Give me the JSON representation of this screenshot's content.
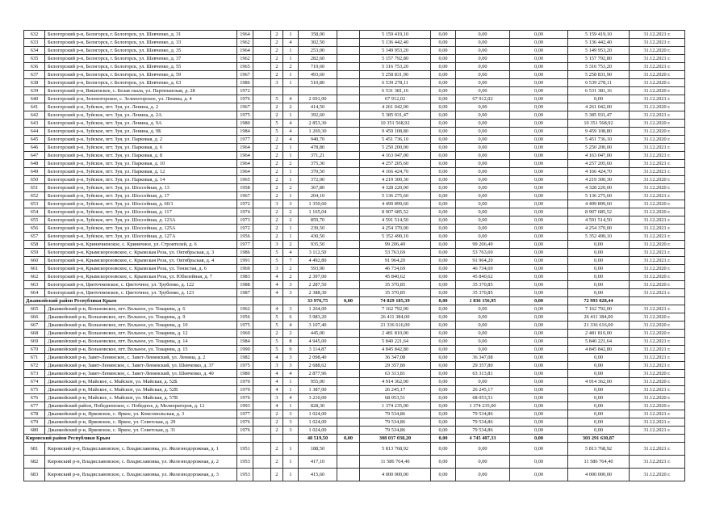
{
  "rows": [
    {
      "n": "632",
      "a": "Белогорский р-н, Белогорск, г. Белогорск, ул. Шевченко, д. 31",
      "y": "1964",
      "f": "2",
      "e": "1",
      "s": "358,00",
      "c": "5 159 419,10",
      "z1": "0,00",
      "p": "0,00",
      "z2": "0,00",
      "r": "5 159 419,10",
      "d": "31.12.2021 г."
    },
    {
      "n": "633",
      "a": "Белогорский р-н, Белогорск, г. Белогорск, ул. Шевченко, д. 33",
      "y": "1962",
      "f": "2",
      "e": "4",
      "s": "302,50",
      "c": "5 136 442,40",
      "z1": "0,00",
      "p": "0,00",
      "z2": "0,00",
      "r": "5 136 442,40",
      "d": "31.12.2021 г."
    },
    {
      "n": "634",
      "a": "Белогорский р-н, Белогорск, г. Белогорск, ул. Шевченко, д. 35",
      "y": "1964",
      "f": "2",
      "e": "1",
      "s": "253,00",
      "c": "5 149 953,20",
      "z1": "0,00",
      "p": "0,00",
      "z2": "0,00",
      "r": "5 149 953,20",
      "d": "31.12.2020 г."
    },
    {
      "n": "635",
      "a": "Белогорский р-н, Белогорск, г. Белогорск, ул. Шевченко, д. 37",
      "y": "1962",
      "f": "2",
      "e": "1",
      "s": "282,60",
      "c": "5 157 792,80",
      "z1": "0,00",
      "p": "0,00",
      "z2": "0,00",
      "r": "5 157 792,80",
      "d": "31.12.2021 г."
    },
    {
      "n": "636",
      "a": "Белогорский р-н, Белогорск, г. Белогорск, ул. Шевченко, д. 55",
      "y": "1965",
      "f": "2",
      "e": "2",
      "s": "719,60",
      "c": "5 316 753,20",
      "z1": "0,00",
      "p": "0,00",
      "z2": "0,00",
      "r": "5 316 753,20",
      "d": "31.12.2021 г."
    },
    {
      "n": "637",
      "a": "Белогорский р-н, Белогорск, г. Белогорск, ул. Шевченко, д. 59",
      "y": "1967",
      "f": "2",
      "e": "1",
      "s": "493,60",
      "c": "5 258 831,90",
      "z1": "0,00",
      "p": "0,00",
      "z2": "0,00",
      "r": "5 258 831,90",
      "d": "31.12.2020 г."
    },
    {
      "n": "638",
      "a": "Белогорский р-н, Белогорск, г. Белогорск, ул. Шевченко, д. 63",
      "y": "1986",
      "f": "3",
      "e": "1",
      "s": "510,80",
      "c": "6 539 278,11",
      "z1": "0,00",
      "p": "0,00",
      "z2": "0,00",
      "r": "6 539 278,11",
      "d": "31.12.2020 г."
    },
    {
      "n": "639",
      "a": "Белогорский р-н, Вишенское, с. Белая скала, ул. Партизанская, д. 28",
      "y": "1972",
      "f": "",
      "e": "",
      "s": "",
      "c": "6 531 381,16",
      "z1": "0,00",
      "p": "0,00",
      "z2": "0,00",
      "r": "6 531 381,16",
      "d": "31.12.2020 г."
    },
    {
      "n": "640",
      "a": "Белогорский р-н, Зеленогорское, с. Зеленогорское, ул. Ленина, д. 4",
      "y": "1976",
      "f": "5",
      "e": "4",
      "s": "2 691,00",
      "c": "67 912,02",
      "z1": "0,00",
      "p": "67 912,02",
      "z2": "0,00",
      "r": "0,00",
      "d": "31.12.2021 г."
    },
    {
      "n": "641",
      "a": "Белогорский р-н, Зуйское, пгт. Зуя, ул. Ленина, д. 2",
      "y": "1967",
      "f": "2",
      "e": "2",
      "s": "414,50",
      "c": "4 261 042,00",
      "z1": "0,00",
      "p": "0,00",
      "z2": "0,00",
      "r": "4 261 042,00",
      "d": "31.12.2020 г."
    },
    {
      "n": "642",
      "a": "Белогорский р-н, Зуйское, пгт. Зуя, ул. Ленина, д. 2А",
      "y": "1975",
      "f": "2",
      "e": "1",
      "s": "392,60",
      "c": "5 385 931,47",
      "z1": "0,00",
      "p": "0,00",
      "z2": "0,00",
      "r": "5 385 931,47",
      "d": "31.12.2021 г."
    },
    {
      "n": "643",
      "a": "Белогорский р-н, Зуйское, пгт. Зуя, ул. Ленина, д. 9А",
      "y": "1980",
      "f": "5",
      "e": "4",
      "s": "2 853,30",
      "c": "10 351 568,92",
      "z1": "0,00",
      "p": "0,00",
      "z2": "0,00",
      "r": "10 351 568,92",
      "d": "31.12.2020 г."
    },
    {
      "n": "644",
      "a": "Белогорский р-н, Зуйское, пгт. Зуя, ул. Ленина, д. 9Б",
      "y": "1984",
      "f": "5",
      "e": "4",
      "s": "1 269,30",
      "c": "9 459 108,80",
      "z1": "0,00",
      "p": "0,00",
      "z2": "0,00",
      "r": "9 459 108,80",
      "d": "31.12.2020 г."
    },
    {
      "n": "645",
      "a": "Белогорский р-н, Зуйское, пгт. Зуя, ул. Парковая, д. 2",
      "y": "1977",
      "f": "2",
      "e": "4",
      "s": "940,70",
      "c": "5 451 736,10",
      "z1": "0,00",
      "p": "0,00",
      "z2": "0,00",
      "r": "5 451 736,10",
      "d": "31.12.2020 г."
    },
    {
      "n": "646",
      "a": "Белогорский р-н, Зуйское, пгт. Зуя, ул. Парковая, д. 6",
      "y": "1964",
      "f": "2",
      "e": "1",
      "s": "478,80",
      "c": "5 250 200,00",
      "z1": "0,00",
      "p": "0,00",
      "z2": "0,00",
      "r": "5 250 200,00",
      "d": "31.12.2021 г."
    },
    {
      "n": "647",
      "a": "Белогорский р-н, Зуйское, пгт. Зуя, ул. Парковая, д. 8",
      "y": "1964",
      "f": "2",
      "e": "1",
      "s": "371,21",
      "c": "4 163 047,00",
      "z1": "0,00",
      "p": "0,00",
      "z2": "0,00",
      "r": "4 163 047,00",
      "d": "31.12.2021 г."
    },
    {
      "n": "648",
      "a": "Белогорский р-н, Зуйское, пгт. Зуя, ул. Парковая, д. 10",
      "y": "1964",
      "f": "2",
      "e": "2",
      "s": "375,30",
      "c": "4 257 205,60",
      "z1": "0,00",
      "p": "0,00",
      "z2": "0,00",
      "r": "4 257 205,60",
      "d": "31.12.2021 г."
    },
    {
      "n": "649",
      "a": "Белогорский р-н, Зуйское, пгт. Зуя, ул. Парковая, д. 12",
      "y": "1964",
      "f": "2",
      "e": "1",
      "s": "370,50",
      "c": "4 166 424,70",
      "z1": "0,00",
      "p": "0,00",
      "z2": "0,00",
      "r": "4 166 424,70",
      "d": "31.12.2021 г."
    },
    {
      "n": "650",
      "a": "Белогорский р-н, Зуйское, пгт. Зуя, ул. Парковая, д. 14",
      "y": "1965",
      "f": "2",
      "e": "1",
      "s": "372,00",
      "c": "4 219 300,30",
      "z1": "0,00",
      "p": "0,00",
      "z2": "0,00",
      "r": "4 219 300,30",
      "d": "31.12.2020 г."
    },
    {
      "n": "651",
      "a": "Белогорский р-н, Зуйское, пгт. Зуя, ул. Шоссейная, д. 13",
      "y": "1958",
      "f": "2",
      "e": "2",
      "s": "367,80",
      "c": "4 328 220,00",
      "z1": "0,00",
      "p": "0,00",
      "z2": "0,00",
      "r": "4 328 220,00",
      "d": "31.12.2020 г."
    },
    {
      "n": "652",
      "a": "Белогорский р-н, Зуйское, пгт. Зуя, ул. Шоссейная, д. 17",
      "y": "1967",
      "f": "2",
      "e": "1",
      "s": "204,10",
      "c": "5 136 275,60",
      "z1": "0,00",
      "p": "0,00",
      "z2": "0,00",
      "r": "5 136 275,60",
      "d": "31.12.2021 г."
    },
    {
      "n": "653",
      "a": "Белогорский р-н, Зуйское, пгт. Зуя, ул. Шоссейная, д. 60/1",
      "y": "1972",
      "f": "3",
      "e": "3",
      "s": "1 350,60",
      "c": "4 499 899,60",
      "z1": "0,00",
      "p": "0,00",
      "z2": "0,00",
      "r": "4 499 899,60",
      "d": "31.12.2020 г."
    },
    {
      "n": "654",
      "a": "Белогорский р-н, Зуйское, пгт. Зуя, ул. Шоссейная, д. 117",
      "y": "1974",
      "f": "2",
      "e": "2",
      "s": "1 165,04",
      "c": "8 907 685,52",
      "z1": "0,00",
      "p": "0,00",
      "z2": "0,00",
      "r": "8 907 685,52",
      "d": "31.12.2020 г."
    },
    {
      "n": "655",
      "a": "Белогорский р-н, Зуйское, пгт. Зуя, ул. Шоссейная, д. 123А",
      "y": "1973",
      "f": "2",
      "e": "2",
      "s": "859,70",
      "c": "4 591 514,50",
      "z1": "0,00",
      "p": "0,00",
      "z2": "0,00",
      "r": "4 591 514,50",
      "d": "31.12.2021 г."
    },
    {
      "n": "656",
      "a": "Белогорский р-н, Зуйское, пгт. Зуя, ул. Шоссейная, д. 125А",
      "y": "1972",
      "f": "2",
      "e": "1",
      "s": "239,50",
      "c": "4 254 370,00",
      "z1": "0,00",
      "p": "0,00",
      "z2": "0,00",
      "r": "4 254 370,00",
      "d": "31.12.2021 г."
    },
    {
      "n": "657",
      "a": "Белогорский р-н, Зуйское, пгт. Зуя, ул. Шоссейная, д. 127А",
      "y": "1956",
      "f": "2",
      "e": "1",
      "s": "430,50",
      "c": "5 352 490,10",
      "z1": "0,00",
      "p": "0,00",
      "z2": "0,00",
      "r": "5 352 490,10",
      "d": "31.12.2021 г."
    },
    {
      "n": "658",
      "a": "Белогорский р-н, Криничненское, с. Криничное, ул. Строителей, д. 6",
      "y": "1977",
      "f": "3",
      "e": "2",
      "s": "935,50",
      "c": "99 206,49",
      "z1": "0,00",
      "p": "99 206,49",
      "z2": "0,00",
      "r": "0,00",
      "d": "31.12.2020 г."
    },
    {
      "n": "659",
      "a": "Белогорский р-н, Крымскорозовское, с. Крымская Роза, ул. Октябрьская, д. 3",
      "y": "1986",
      "f": "5",
      "e": "4",
      "s": "3 112,50",
      "c": "53 763,69",
      "z1": "0,00",
      "p": "53 763,69",
      "z2": "0,00",
      "r": "0,00",
      "d": "31.12.2021 г."
    },
    {
      "n": "660",
      "a": "Белогорский р-н, Крымскорозовское, с. Крымская Роза, ул. Октябрьская, д. 4",
      "y": "1991",
      "f": "5",
      "e": "7",
      "s": "4 492,80",
      "c": "91 964,20",
      "z1": "0,00",
      "p": "91 964,20",
      "z2": "0,00",
      "r": "0,00",
      "d": "31.12.2021 г."
    },
    {
      "n": "661",
      "a": "Белогорский р-н, Крымскорозовское, с. Крымская Роза, ул. Тенистая, д. 6",
      "y": "1969",
      "f": "3",
      "e": "2",
      "s": "593,90",
      "c": "46 734,69",
      "z1": "0,00",
      "p": "46 734,69",
      "z2": "0,00",
      "r": "0,00",
      "d": "31.12.2020 г."
    },
    {
      "n": "662",
      "a": "Белогорский р-н, Крымскорозовское, с. Крымская Роза, ул. Юбилейная, д. 7",
      "y": "1983",
      "f": "4",
      "e": "2",
      "s": "2 397,00",
      "c": "45 840,62",
      "z1": "0,00",
      "p": "45 840,62",
      "z2": "0,00",
      "r": "0,00",
      "d": "31.12.2020 г."
    },
    {
      "n": "663",
      "a": "Белогорский р-н, Цветочненское, с. Цветочное, ул. Трубенко, д. 122",
      "y": "1988",
      "f": "4",
      "e": "3",
      "s": "2 287,50",
      "c": "35 370,85",
      "z1": "0,00",
      "p": "35 370,85",
      "z2": "0,00",
      "r": "0,00",
      "d": "31.12.2020 г."
    },
    {
      "n": "664",
      "a": "Белогорский р-н, Цветочненское, с. Цветочное, ул. Трубенко, д. 123",
      "y": "1987",
      "f": "4",
      "e": "3",
      "s": "2 388,30",
      "c": "35 370,85",
      "z1": "0,00",
      "p": "35 370,85",
      "z2": "0,00",
      "r": "0,00",
      "d": "31.12.2021 г."
    },
    {
      "section": true,
      "label": "Джанкойский район Республики Крым",
      "s": "33 976,75",
      "x": "0,00",
      "c": "74 829 185,39",
      "z1": "0,00",
      "p": "1 836 156,95",
      "z2": "0,00",
      "r": "72 993 028,44"
    },
    {
      "n": "665",
      "a": "Джанкойский р-н, Вольновское, пгт. Вольное, ул. Токарева, д. 6",
      "y": "1962",
      "f": "4",
      "e": "3",
      "s": "1 264,00",
      "c": "7 162 792,00",
      "z1": "0,00",
      "p": "0,00",
      "z2": "0,00",
      "r": "7 162 792,00",
      "d": "31.12.2021 г."
    },
    {
      "n": "666",
      "a": "Джанкойский р-н, Вольновское, пгт. Вольное, ул. Токарева, д. 9",
      "y": "1956",
      "f": "5",
      "e": "6",
      "s": "3 983,20",
      "c": "26 411 384,00",
      "z1": "0,00",
      "p": "0,00",
      "z2": "0,00",
      "r": "26 411 384,00",
      "d": "31.12.2020 г."
    },
    {
      "n": "667",
      "a": "Джанкойский р-н, Вольновское, пгт. Вольное, ул. Токарева, д. 10",
      "y": "1975",
      "f": "5",
      "e": "4",
      "s": "3 107,40",
      "c": "21 336 616,00",
      "z1": "0,00",
      "p": "0,00",
      "z2": "0,00",
      "r": "21 336 616,00",
      "d": "31.12.2020 г."
    },
    {
      "n": "668",
      "a": "Джанкойский р-н, Вольновское, пгт. Вольное, ул. Токарева, д. 12",
      "y": "1960",
      "f": "2",
      "e": "2",
      "s": "445,00",
      "c": "2 481 810,00",
      "z1": "0,00",
      "p": "0,00",
      "z2": "0,00",
      "r": "2 481 810,00",
      "d": "31.12.2020 г."
    },
    {
      "n": "669",
      "a": "Джанкойский р-н, Вольновское, пгт. Вольное, ул. Токарева, д. 14",
      "y": "1984",
      "f": "5",
      "e": "8",
      "s": "4 945,00",
      "c": "5 840 221,64",
      "z1": "0,00",
      "p": "0,00",
      "z2": "0,00",
      "r": "5 840 221,64",
      "d": "31.12.2021 г."
    },
    {
      "n": "670",
      "a": "Джанкойский р-н, Вольновское, пгт. Вольное, ул. Токарева, д. 15",
      "y": "1990",
      "f": "5",
      "e": "9",
      "s": "3 114,87",
      "c": "4 845 842,80",
      "z1": "0,00",
      "p": "0,00",
      "z2": "0,00",
      "r": "4 845 842,80",
      "d": "31.12.2021 г."
    },
    {
      "n": "671",
      "a": "Джанкойский р-н, Завет-Ленинское, с. Завет-Ленинский, ул. Ленина, д. 2",
      "y": "1982",
      "f": "4",
      "e": "3",
      "s": "2 098,40",
      "c": "36 347,08",
      "z1": "0,00",
      "p": "36 347,08",
      "z2": "0,00",
      "r": "0,00",
      "d": "31.12.2021 г."
    },
    {
      "n": "672",
      "a": "Джанкойский р-н, Завет-Ленинское, с. Завет-Ленинский, ул. Шевченко, д. 37",
      "y": "1975",
      "f": "3",
      "e": "3",
      "s": "2 688,62",
      "c": "29 357,80",
      "z1": "0,00",
      "p": "29 357,80",
      "z2": "0,00",
      "r": "0,00",
      "d": "31.12.2021 г."
    },
    {
      "n": "673",
      "a": "Джанкойский р-н, Завет-Ленинское, с. Завет-Ленинский, ул. Шевченко, д. 40",
      "y": "1980",
      "f": "4",
      "e": "4",
      "s": "2 877,96",
      "c": "63 313,81",
      "z1": "0,00",
      "p": "63 313,81",
      "z2": "0,00",
      "r": "0,00",
      "d": "31.12.2020 г."
    },
    {
      "n": "674",
      "a": "Джанкойский р-н, Майское, с. Майское, ул. Майская, д. 52Б",
      "y": "1970",
      "f": "4",
      "e": "1",
      "s": "955,00",
      "c": "4 914 362,00",
      "z1": "0,00",
      "p": "0,00",
      "z2": "0,00",
      "r": "4 914 362,00",
      "d": "31.12.2020 г."
    },
    {
      "n": "675",
      "a": "Джанкойский р-н, Майское, с. Майское, ул. Майская, д. 52В",
      "y": "1970",
      "f": "4",
      "e": "1",
      "s": "1 387,00",
      "c": "26 245,17",
      "z1": "0,00",
      "p": "26 245,17",
      "z2": "0,00",
      "r": "0,00",
      "d": "31.12.2021 г."
    },
    {
      "n": "676",
      "a": "Джанкойский р-н, Майское, с. Майское, ул. Майская, д. 57В",
      "y": "1976",
      "f": "3",
      "e": "4",
      "s": "3 210,00",
      "c": "68 053,51",
      "z1": "0,00",
      "p": "68 053,51",
      "z2": "0,00",
      "r": "0,00",
      "d": "31.12.2020 г."
    },
    {
      "n": "677",
      "a": "Джанкойский район, Победненское, с. Победное, д. Мелиораторов, д. 12",
      "y": "1993",
      "f": "4",
      "e": "1",
      "s": "828,30",
      "c": "1 374 235,00",
      "z1": "0,00",
      "p": "1 374 235,00",
      "z2": "0,00",
      "r": "0,00",
      "d": "31.12.2020 г."
    },
    {
      "n": "678",
      "a": "Джанкойский р-н, Ярковское, с. Яркое, ул. Комсомольская, д. 3",
      "y": "1977",
      "f": "2",
      "e": "3",
      "s": "1 024,00",
      "c": "79 534,86",
      "z1": "0,00",
      "p": "79 534,86",
      "z2": "0,00",
      "r": "0,00",
      "d": "31.12.2021 г."
    },
    {
      "n": "679",
      "a": "Джанкойский р-н, Ярковское, с. Яркое, ул. Советская, д. 29",
      "y": "1976",
      "f": "2",
      "e": "3",
      "s": "1 024,00",
      "c": "79 534,86",
      "z1": "0,00",
      "p": "79 534,86",
      "z2": "0,00",
      "r": "0,00",
      "d": "31.12.2021 г."
    },
    {
      "n": "680",
      "a": "Джанкойский р-н, Ярковское, с. Яркое, ул. Советская, д. 31",
      "y": "1976",
      "f": "2",
      "e": "3",
      "s": "1 024,00",
      "c": "79 534,86",
      "z1": "0,00",
      "p": "79 534,86",
      "z2": "0,00",
      "r": "0,00",
      "d": "31.12.2021 г."
    },
    {
      "section": true,
      "label": "Кировский район Республики Крым",
      "s": "48 519,50",
      "x": "0,00",
      "c": "308 037 038,20",
      "z1": "0,00",
      "p": "4 745 407,33",
      "z2": "0,00",
      "r": "303 291 630,87"
    },
    {
      "tall": true,
      "n": "681",
      "a": "Кировский р-н, Владиславовское, с. Владиславовка, ул. Железнодорожная, д. 1",
      "y": "1951",
      "f": "2",
      "e": "1",
      "s": "188,50",
      "c": "5 813 768,92",
      "z1": "0,00",
      "p": "0,00",
      "z2": "0,00",
      "r": "5 813 768,92",
      "d": "31.12.2021 г."
    },
    {
      "tall": true,
      "n": "682",
      "a": "Кировский р-н, Владиславовское, с. Владиславовка, ул. Железнодорожная, д. 2",
      "y": "1953",
      "f": "2",
      "e": "1",
      "s": "417,10",
      "c": "11 586 764,40",
      "z1": "0,00",
      "p": "0,00",
      "z2": "0,00",
      "r": "11 586 764,40",
      "d": "31.12.2021 г."
    },
    {
      "tall": true,
      "n": "683",
      "a": "Кировский р-н, Владиславовское, с. Владиславовка, ул. Железнодорожная, д. 3",
      "y": "1953",
      "f": "2",
      "e": "1",
      "s": "415,60",
      "c": "4 000 000,00",
      "z1": "0,00",
      "p": "0,00",
      "z2": "0,00",
      "r": "4 000 000,00",
      "d": "31.12.2020 г."
    }
  ]
}
